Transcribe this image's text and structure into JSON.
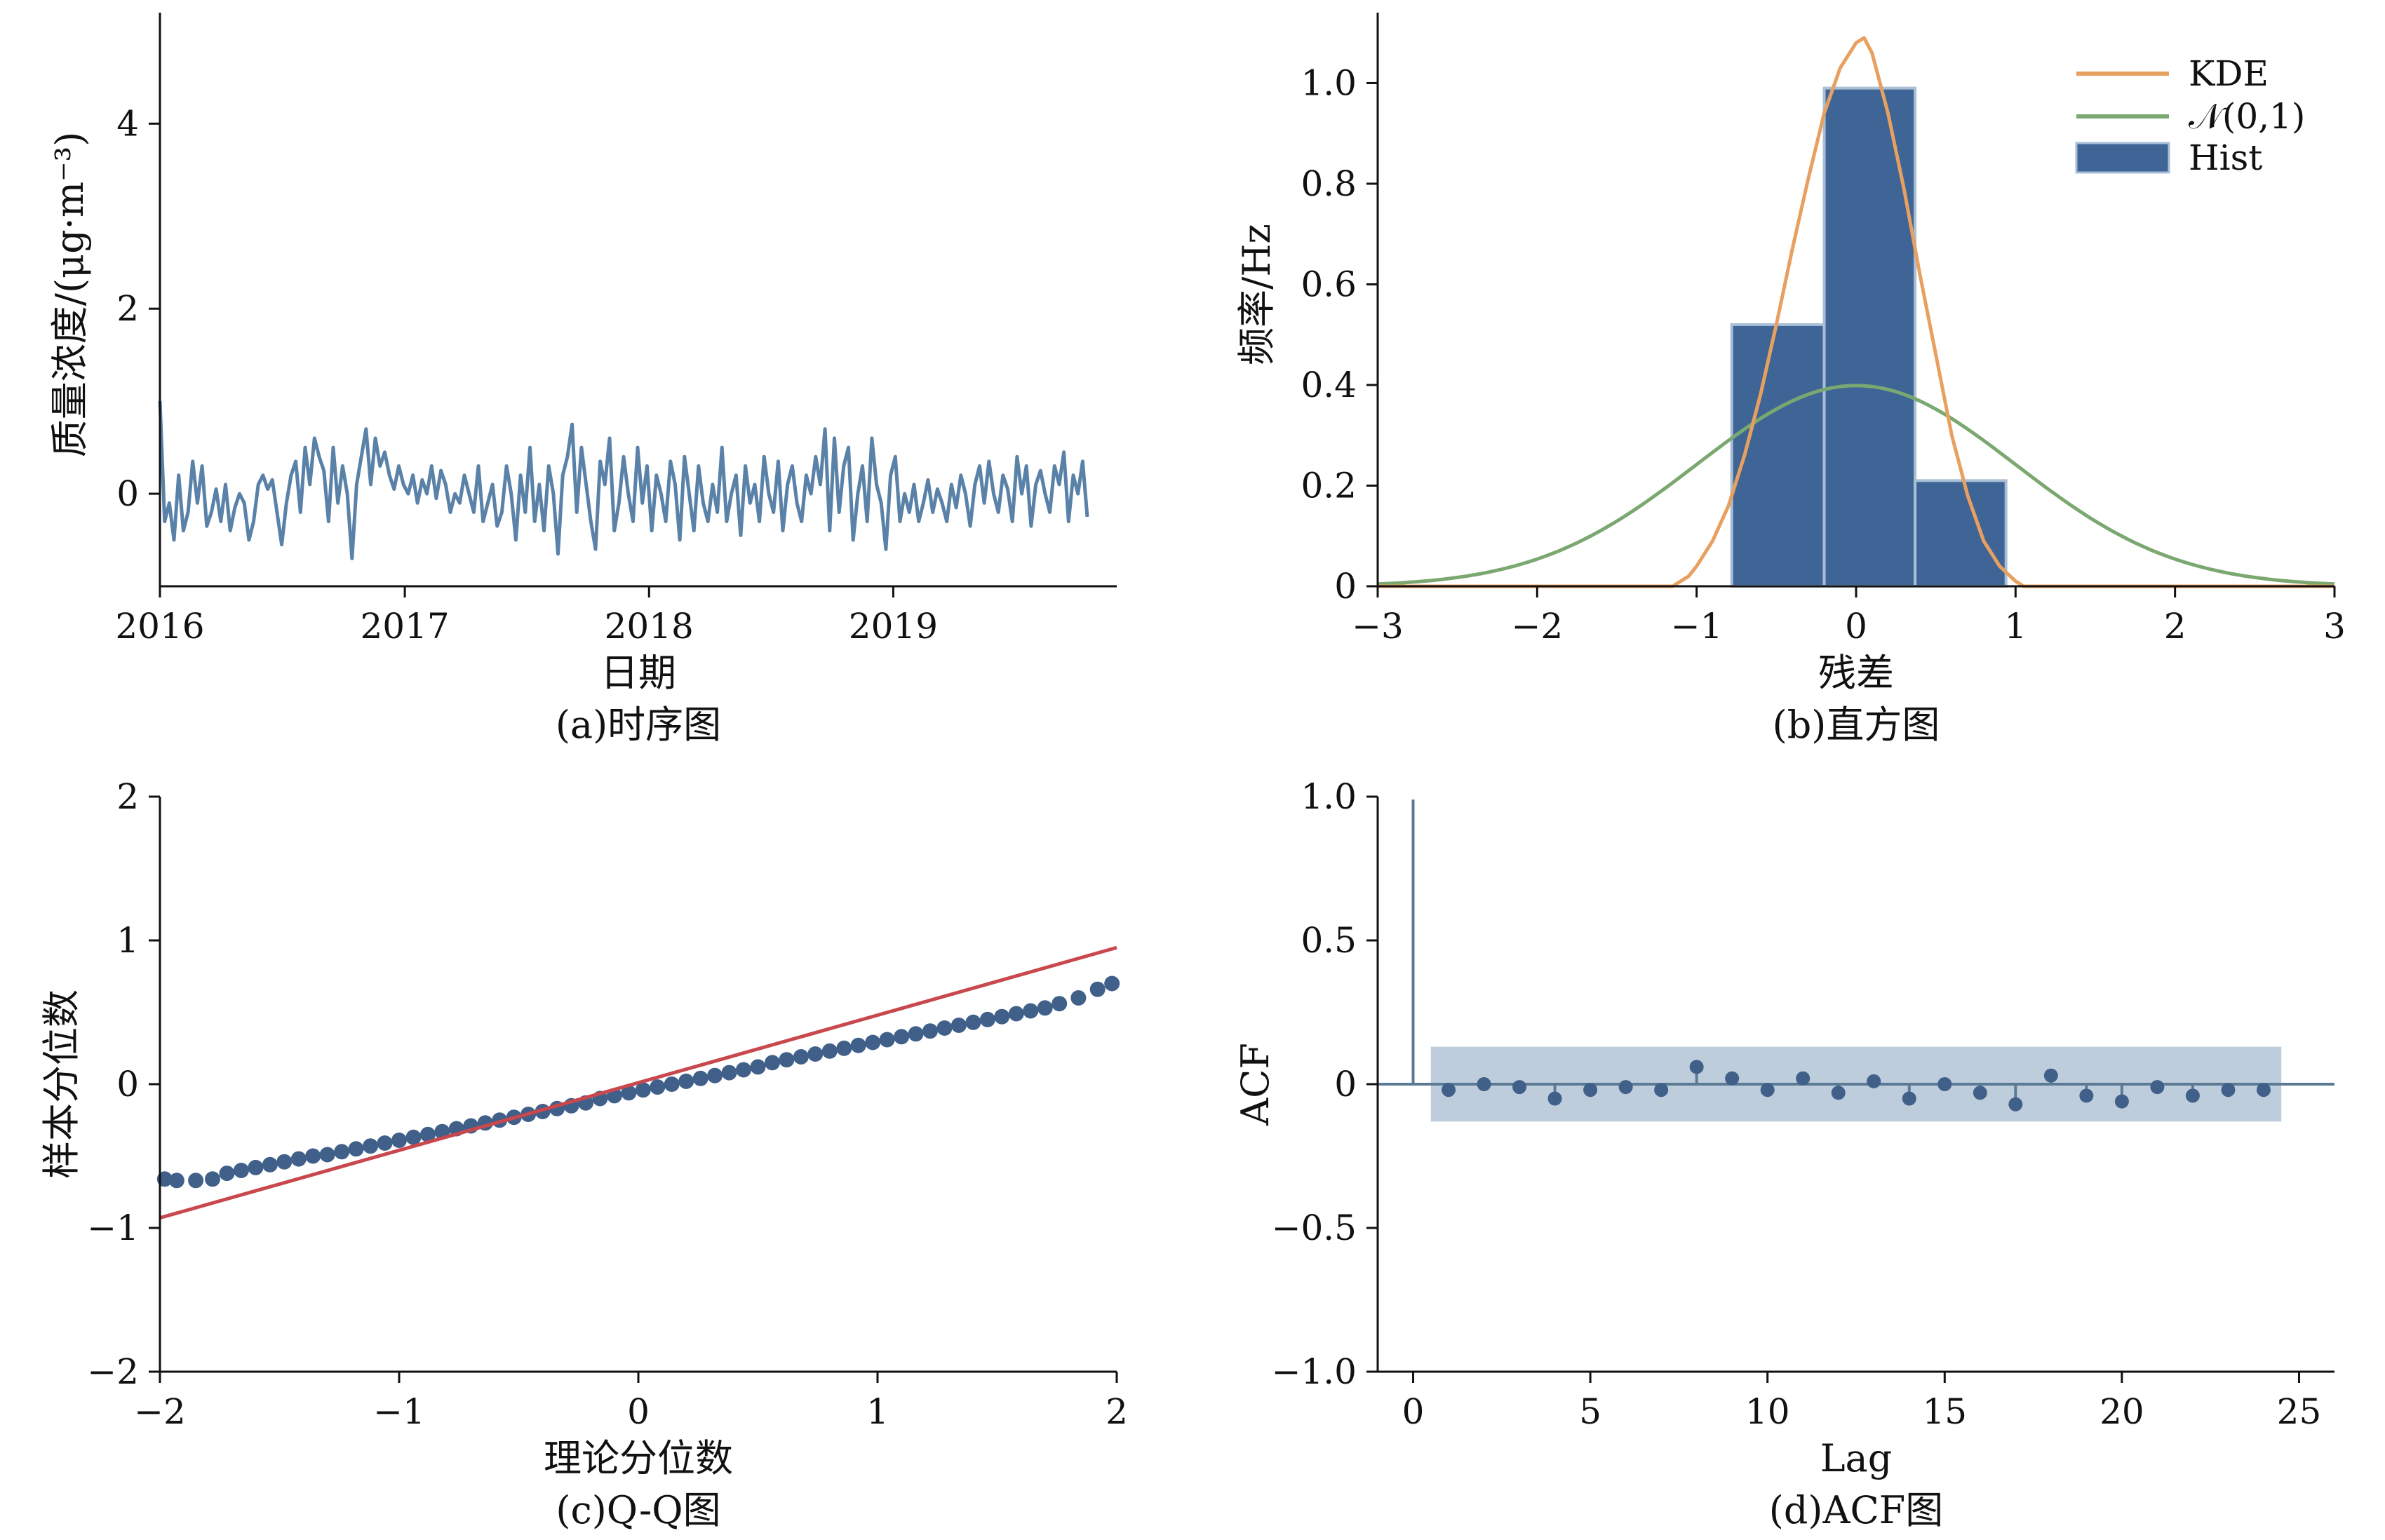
{
  "colors": {
    "series": "#5a82a8",
    "kde": "#e8a060",
    "normal": "#7aa870",
    "hist": "#3f6596",
    "hist_edge": "#a9bfd6",
    "qq_points": "#40608a",
    "qq_line": "#c8484e",
    "acf_band": "#a3b8cc",
    "acf_stem": "#5a7a96"
  },
  "chart_data": [
    {
      "type": "line",
      "caption": "(a)时序图",
      "xlabel": "日期",
      "ylabel": "质量浓度/(μg·m⁻³)",
      "xlim": [
        "2016-01-01",
        "2019-12-01"
      ],
      "ylim": [
        -1,
        5.2
      ],
      "xticks": [
        "2016",
        "2017",
        "2018",
        "2019"
      ],
      "yticks": [
        "0",
        "2",
        "4"
      ],
      "series": [
        {
          "x_start": "2016-01-01",
          "x_step_days": 7,
          "values": [
            1.0,
            -0.3,
            -0.1,
            -0.5,
            0.2,
            -0.4,
            -0.2,
            0.35,
            -0.1,
            0.3,
            -0.35,
            -0.2,
            0.05,
            -0.3,
            0.1,
            -0.4,
            -0.15,
            0.0,
            -0.1,
            -0.5,
            -0.3,
            0.1,
            0.2,
            0.05,
            0.15,
            -0.2,
            -0.55,
            -0.1,
            0.2,
            0.35,
            -0.2,
            0.5,
            0.1,
            0.6,
            0.4,
            0.25,
            -0.3,
            0.5,
            -0.1,
            0.3,
            0.0,
            -0.7,
            0.1,
            0.4,
            0.7,
            0.1,
            0.6,
            0.3,
            0.45,
            0.2,
            0.05,
            0.3,
            0.1,
            0.0,
            0.2,
            -0.1,
            0.15,
            0.0,
            0.3,
            -0.05,
            0.25,
            0.1,
            -0.2,
            0.0,
            -0.1,
            0.2,
            0.0,
            -0.2,
            0.3,
            -0.3,
            -0.1,
            0.1,
            -0.35,
            -0.2,
            0.3,
            0.0,
            -0.5,
            0.2,
            -0.2,
            0.5,
            -0.3,
            0.1,
            -0.4,
            0.3,
            0.0,
            -0.65,
            0.2,
            0.4,
            0.75,
            -0.2,
            0.5,
            0.1,
            -0.3,
            -0.6,
            0.35,
            0.1,
            0.6,
            -0.4,
            -0.1,
            0.4,
            0.0,
            -0.3,
            0.5,
            -0.1,
            0.3,
            -0.4,
            0.2,
            0.0,
            -0.3,
            0.35,
            0.1,
            -0.5,
            0.4,
            0.0,
            -0.4,
            0.3,
            -0.1,
            -0.3,
            0.1,
            -0.2,
            0.5,
            -0.3,
            0.0,
            0.2,
            -0.45,
            0.3,
            -0.1,
            0.1,
            -0.3,
            0.4,
            0.0,
            -0.2,
            0.35,
            -0.4,
            0.1,
            0.3,
            -0.1,
            -0.3,
            0.2,
            0.0,
            0.4,
            0.1,
            0.7,
            -0.4,
            0.6,
            -0.2,
            0.3,
            0.5,
            -0.5,
            0.0,
            0.3,
            -0.3,
            0.6,
            0.1,
            -0.1,
            -0.6,
            0.2,
            0.4,
            -0.3,
            0.0,
            -0.2,
            0.1,
            -0.3,
            -0.1,
            0.15,
            -0.2,
            0.05,
            -0.1,
            -0.3,
            0.1,
            -0.15,
            0.2,
            0.0,
            -0.35,
            0.1,
            0.3,
            -0.1,
            0.35,
            0.0,
            -0.2,
            0.2,
            0.05,
            -0.3,
            0.4,
            0.0,
            0.3,
            -0.35,
            0.1,
            0.25,
            0.0,
            -0.2,
            0.3,
            0.1,
            0.45,
            -0.3,
            0.2,
            0.0,
            0.35,
            -0.25
          ]
        }
      ]
    },
    {
      "type": "bar",
      "caption": "(b)直方图",
      "xlabel": "残差",
      "ylabel": "频率/Hz",
      "xlim": [
        -3,
        3
      ],
      "ylim": [
        0,
        1.1
      ],
      "xticks": [
        "−3",
        "−2",
        "−1",
        "0",
        "1",
        "2",
        "3"
      ],
      "yticks": [
        "0",
        "0.2",
        "0.4",
        "0.6",
        "0.8",
        "1.0"
      ],
      "legend": [
        "KDE",
        "𝒩(0,1)",
        "Hist"
      ],
      "legend_position": "top-right",
      "hist": {
        "bins": [
          [
            -0.78,
            -0.2
          ],
          [
            -0.2,
            0.37
          ],
          [
            0.37,
            0.94
          ]
        ],
        "heights": [
          0.52,
          0.99,
          0.21
        ]
      },
      "kde": {
        "x": [
          -3.0,
          -1.15,
          -1.05,
          -1.0,
          -0.9,
          -0.8,
          -0.7,
          -0.6,
          -0.5,
          -0.4,
          -0.3,
          -0.2,
          -0.1,
          0.0,
          0.05,
          0.1,
          0.2,
          0.3,
          0.4,
          0.5,
          0.6,
          0.7,
          0.8,
          0.9,
          1.0,
          1.05,
          3.0
        ],
        "y": [
          0.0,
          0.0,
          0.02,
          0.04,
          0.09,
          0.16,
          0.26,
          0.38,
          0.52,
          0.67,
          0.81,
          0.94,
          1.03,
          1.08,
          1.09,
          1.06,
          0.94,
          0.79,
          0.62,
          0.46,
          0.3,
          0.18,
          0.09,
          0.04,
          0.01,
          0.0,
          0.0
        ]
      },
      "normal": {
        "mean": 0,
        "std": 1
      }
    },
    {
      "type": "scatter",
      "caption": "(c)Q-Q图",
      "xlabel": "理论分位数",
      "ylabel": "样本分位数",
      "xlim": [
        -2,
        2
      ],
      "ylim": [
        -2,
        2
      ],
      "xticks": [
        "−2",
        "−1",
        "0",
        "1",
        "2"
      ],
      "yticks": [
        "−2",
        "−1",
        "0",
        "1",
        "2"
      ],
      "points": {
        "theoretical": [
          -1.98,
          -1.93,
          -1.85,
          -1.78,
          -1.72,
          -1.66,
          -1.6,
          -1.54,
          -1.48,
          -1.42,
          -1.36,
          -1.3,
          -1.24,
          -1.18,
          -1.12,
          -1.06,
          -1.0,
          -0.94,
          -0.88,
          -0.82,
          -0.76,
          -0.7,
          -0.64,
          -0.58,
          -0.52,
          -0.46,
          -0.4,
          -0.34,
          -0.28,
          -0.22,
          -0.16,
          -0.1,
          -0.04,
          0.02,
          0.08,
          0.14,
          0.2,
          0.26,
          0.32,
          0.38,
          0.44,
          0.5,
          0.56,
          0.62,
          0.68,
          0.74,
          0.8,
          0.86,
          0.92,
          0.98,
          1.04,
          1.1,
          1.16,
          1.22,
          1.28,
          1.34,
          1.4,
          1.46,
          1.52,
          1.58,
          1.64,
          1.7,
          1.76,
          1.84,
          1.92,
          1.98
        ],
        "sample": [
          -0.66,
          -0.67,
          -0.67,
          -0.66,
          -0.62,
          -0.6,
          -0.58,
          -0.56,
          -0.54,
          -0.52,
          -0.5,
          -0.49,
          -0.47,
          -0.45,
          -0.43,
          -0.41,
          -0.39,
          -0.37,
          -0.35,
          -0.33,
          -0.31,
          -0.29,
          -0.27,
          -0.25,
          -0.23,
          -0.21,
          -0.19,
          -0.17,
          -0.15,
          -0.13,
          -0.1,
          -0.08,
          -0.06,
          -0.04,
          -0.02,
          0.0,
          0.02,
          0.04,
          0.06,
          0.08,
          0.1,
          0.12,
          0.15,
          0.17,
          0.19,
          0.21,
          0.23,
          0.25,
          0.27,
          0.29,
          0.31,
          0.33,
          0.35,
          0.37,
          0.39,
          0.41,
          0.43,
          0.45,
          0.47,
          0.49,
          0.51,
          0.53,
          0.56,
          0.6,
          0.66,
          0.7
        ]
      },
      "reference_line": {
        "x": [
          -2,
          2
        ],
        "y": [
          -0.93,
          0.95
        ]
      }
    },
    {
      "type": "bar",
      "caption": "(d)ACF图",
      "xlabel": "Lag",
      "ylabel": "ACF",
      "xlim": [
        -1,
        26
      ],
      "ylim": [
        -1.0,
        1.0
      ],
      "xticks": [
        "0",
        "5",
        "10",
        "15",
        "20",
        "25"
      ],
      "yticks": [
        "−1.0",
        "−0.5",
        "0",
        "0.5",
        "1.0"
      ],
      "lags": [
        0,
        1,
        2,
        3,
        4,
        5,
        6,
        7,
        8,
        9,
        10,
        11,
        12,
        13,
        14,
        15,
        16,
        17,
        18,
        19,
        20,
        21,
        22,
        23,
        24
      ],
      "values": [
        0.99,
        -0.02,
        0.0,
        -0.01,
        -0.05,
        -0.02,
        -0.01,
        -0.02,
        0.06,
        0.02,
        -0.02,
        0.02,
        -0.03,
        0.01,
        -0.05,
        0.0,
        -0.03,
        -0.07,
        0.03,
        -0.04,
        -0.06,
        -0.01,
        -0.04,
        -0.02,
        -0.02
      ],
      "confidence_band": [
        -0.13,
        0.13
      ],
      "band_lag_range": [
        0.5,
        24.5
      ]
    }
  ]
}
